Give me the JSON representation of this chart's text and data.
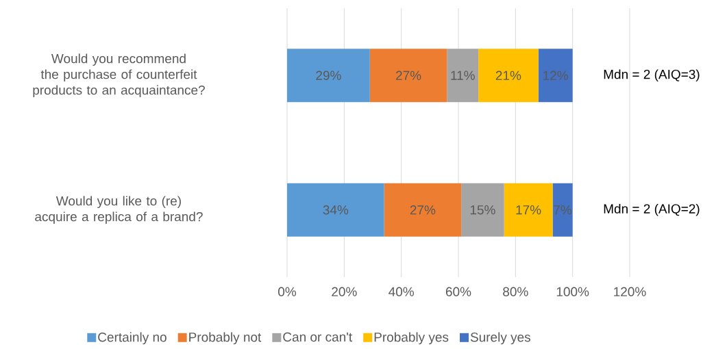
{
  "chart_data": {
    "type": "bar",
    "orientation": "horizontal",
    "stacked": true,
    "categories": [
      "Would you recommend the purchase of counterfeit products to an acquaintance?",
      "Would you like to (re) acquire a replica of a brand?"
    ],
    "series": [
      {
        "name": "Certainly no",
        "color": "#5b9bd5",
        "values": [
          29,
          34
        ],
        "value_labels": [
          "29%",
          "34%"
        ]
      },
      {
        "name": "Probably not",
        "color": "#ed7d31",
        "values": [
          27,
          27
        ],
        "value_labels": [
          "27%",
          "27%"
        ]
      },
      {
        "name": "Can or can't",
        "color": "#a5a5a5",
        "values": [
          11,
          15
        ],
        "value_labels": [
          "11%",
          "15%"
        ]
      },
      {
        "name": "Probably yes",
        "color": "#ffc000",
        "values": [
          21,
          17
        ],
        "value_labels": [
          "21%",
          "17%"
        ]
      },
      {
        "name": "Surely yes",
        "color": "#4472c4",
        "values": [
          12,
          7
        ],
        "value_labels": [
          "12%",
          "7%"
        ]
      }
    ],
    "xlim": [
      0,
      120
    ],
    "xticks": [
      {
        "value": 0,
        "label": "0%"
      },
      {
        "value": 20,
        "label": "20%"
      },
      {
        "value": 40,
        "label": "40%"
      },
      {
        "value": 60,
        "label": "60%"
      },
      {
        "value": 80,
        "label": "80%"
      },
      {
        "value": 100,
        "label": "100%"
      },
      {
        "value": 120,
        "label": "120%"
      }
    ],
    "annotations": [
      "Mdn = 2 (AIQ=3)",
      "Mdn = 2 (AIQ=2)"
    ],
    "grid": "x",
    "legend": "bottom"
  }
}
